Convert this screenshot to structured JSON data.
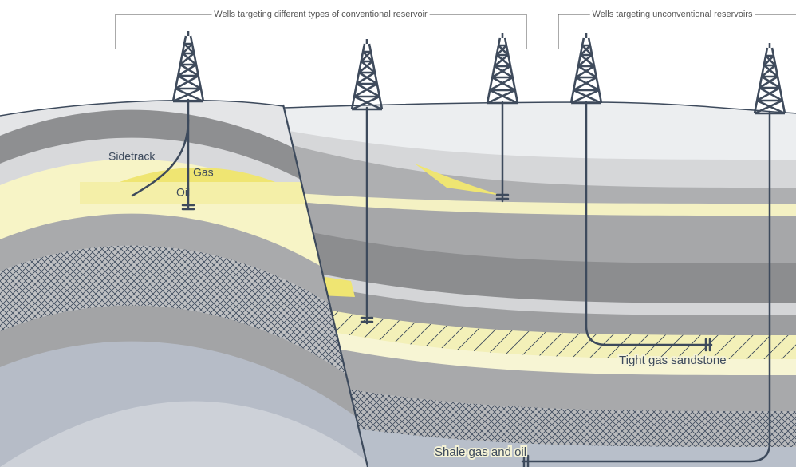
{
  "headers": [
    {
      "label": "Wells targeting different types of conventional reservoir"
    },
    {
      "label": "Wells targeting unconventional reservoirs"
    }
  ],
  "labels": {
    "sidetrack": "Sidetrack",
    "gas": "Gas",
    "oil": "Oil",
    "tight_gas": "Tight gas sandstone",
    "shale": "Shale gas and oil"
  }
}
